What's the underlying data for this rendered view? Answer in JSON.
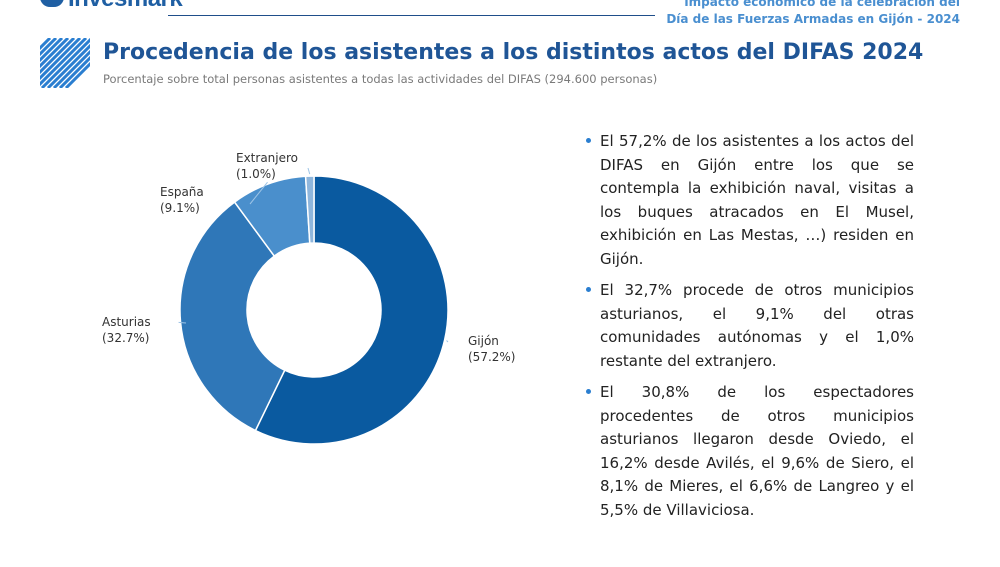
{
  "header": {
    "brand": "Invesmark",
    "right_line1": "Impacto económico de la celebración del",
    "right_line2": "Día de las Fuerzas Armadas en Gijón - 2024"
  },
  "title": "Procedencia de los asistentes a los distintos actos del DIFAS 2024",
  "subtitle": "Porcentaje sobre total personas asistentes a todas las actividades del DIFAS (294.600 personas)",
  "chart_data": {
    "type": "pie",
    "donut": true,
    "title": "",
    "categories": [
      "Gijón",
      "Asturias",
      "España",
      "Extranjero"
    ],
    "values": [
      57.2,
      32.7,
      9.1,
      1.0
    ],
    "labels": [
      "(57.2%)",
      "(32.7%)",
      "(9.1%)",
      "(1.0%)"
    ],
    "colors": [
      "#0a5aa0",
      "#2f77b8",
      "#4a8fcc",
      "#8fb6dc"
    ],
    "legend": "none"
  },
  "bullets": [
    "El 57,2% de los asistentes a los actos del DIFAS en Gijón entre los que se contempla la exhibición naval, visitas a los buques atracados en El Musel, exhibición en Las Mestas, …) residen en Gijón.",
    "El 32,7% procede de otros municipios asturianos, el 9,1% del otras comunidades autónomas y el 1,0% restante del extranjero.",
    "El 30,8% de los espectadores procedentes de otros municipios asturianos llegaron desde Oviedo, el 16,2% desde Avilés, el 9,6% de Siero, el 8,1% de Mieres, el 6,6% de Langreo y el 5,5% de Villaviciosa."
  ],
  "colors": {
    "accent": "#1f5596",
    "text": "#222222",
    "muted": "#7a7a7a"
  }
}
